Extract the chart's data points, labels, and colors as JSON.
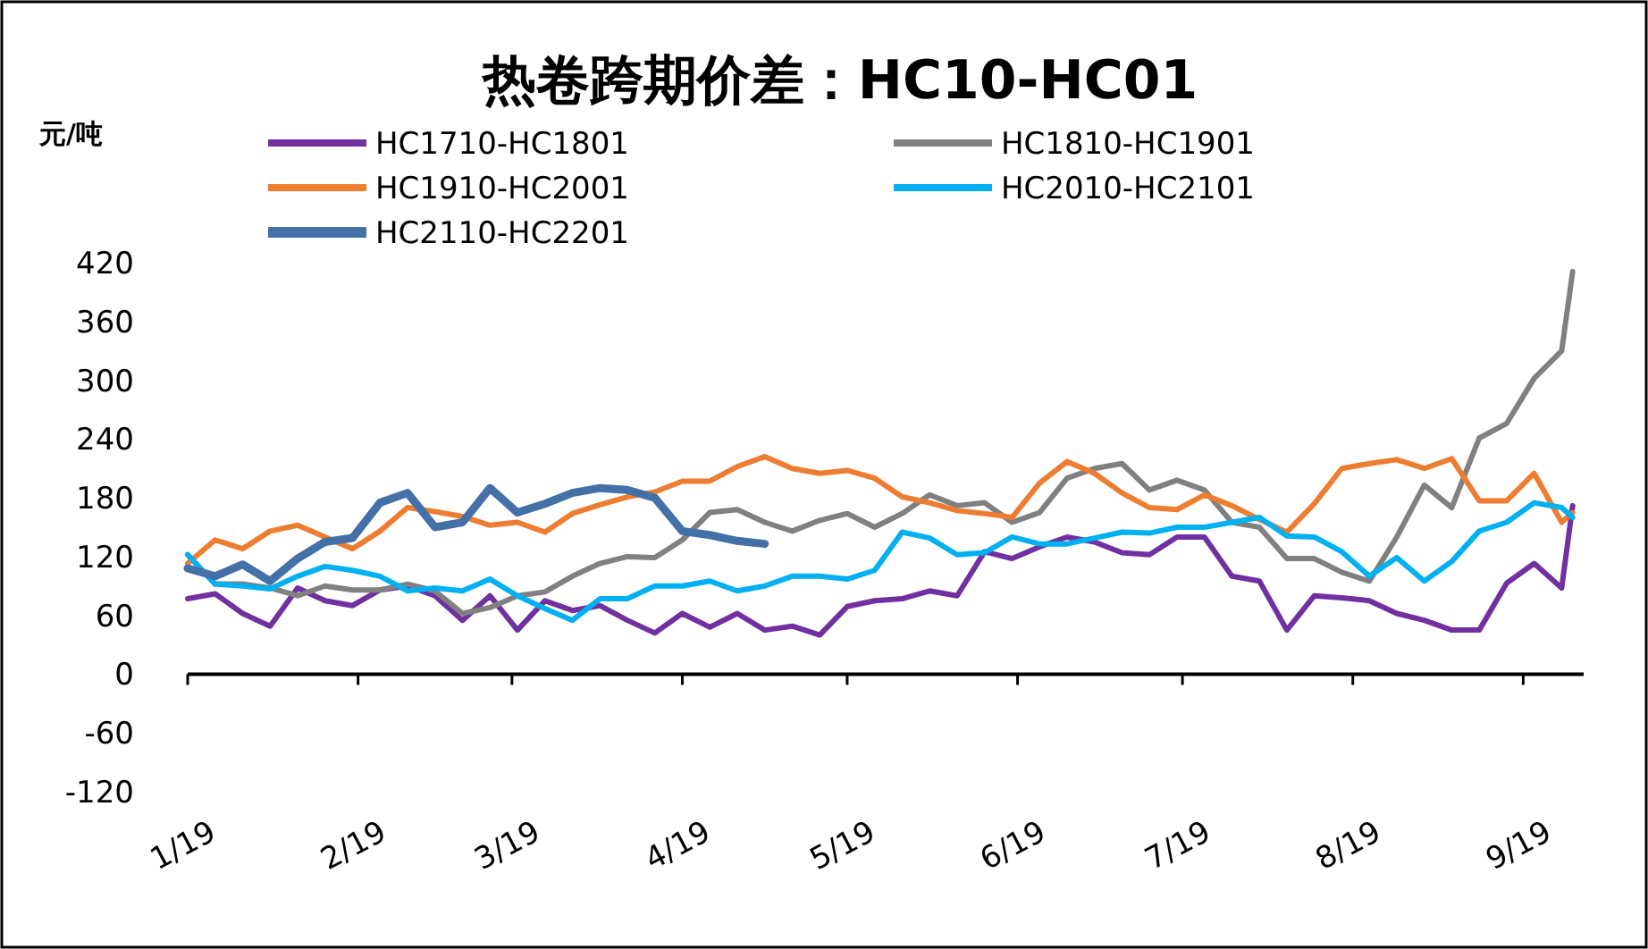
{
  "chart_data": {
    "type": "line",
    "title": "热卷跨期价差：HC10-HC01",
    "ylabel": "元/吨",
    "x": [
      "--01-19",
      "--01-24",
      "--01-29",
      "--02-03",
      "--02-08",
      "--02-13",
      "--02-18",
      "--02-23",
      "--02-28",
      "--03-05",
      "--03-10",
      "--03-15",
      "--03-20",
      "--03-25",
      "--03-30",
      "--04-04",
      "--04-09",
      "--04-14",
      "--04-19",
      "--04-24",
      "--04-29",
      "--05-04",
      "--05-09",
      "--05-14",
      "--05-19",
      "--05-24",
      "--05-29",
      "--06-03",
      "--06-08",
      "--06-13",
      "--06-18",
      "--06-23",
      "--06-28",
      "--07-03",
      "--07-08",
      "--07-13",
      "--07-18",
      "--07-23",
      "--07-28",
      "--08-02",
      "--08-07",
      "--08-12",
      "--08-17",
      "--08-22",
      "--08-27",
      "--09-01",
      "--09-06",
      "--09-11",
      "--09-16",
      "--09-21",
      "--09-26",
      "--09-28"
    ],
    "series": [
      {
        "name": "HC1710-HC1801",
        "color": "#7030a0",
        "values": [
          77,
          82,
          62,
          49,
          88,
          75,
          70,
          86,
          90,
          80,
          55,
          80,
          45,
          75,
          65,
          70,
          55,
          42,
          62,
          48,
          62,
          45,
          49,
          40,
          69,
          75,
          77,
          85,
          80,
          125,
          118,
          130,
          140,
          135,
          124,
          122,
          140,
          140,
          100,
          95,
          45,
          80,
          78,
          75,
          62,
          55,
          45,
          45,
          93,
          113,
          88,
          172
        ]
      },
      {
        "name": "HC1810-HC1901",
        "color": "#808080",
        "values": [
          122,
          92,
          92,
          88,
          80,
          90,
          86,
          86,
          92,
          85,
          62,
          68,
          80,
          84,
          100,
          113,
          120,
          119,
          137,
          165,
          168,
          155,
          146,
          157,
          164,
          150,
          164,
          183,
          172,
          175,
          155,
          165,
          200,
          210,
          215,
          188,
          198,
          188,
          155,
          150,
          118,
          118,
          104,
          95,
          140,
          193,
          170,
          241,
          256,
          302,
          330,
          411
        ]
      },
      {
        "name": "HC1910-HC2001",
        "color": "#ed7d31",
        "values": [
          113,
          137,
          128,
          146,
          152,
          140,
          128,
          146,
          170,
          166,
          161,
          152,
          155,
          145,
          164,
          173,
          181,
          186,
          197,
          197,
          212,
          222,
          210,
          205,
          208,
          200,
          181,
          175,
          167,
          164,
          160,
          195,
          217,
          205,
          185,
          170,
          168,
          183,
          172,
          158,
          145,
          174,
          210,
          215,
          219,
          210,
          220,
          177,
          177,
          205,
          155,
          165
        ]
      },
      {
        "name": "HC2010-HC2101",
        "color": "#00b0f0",
        "values": [
          122,
          92,
          90,
          87,
          100,
          110,
          106,
          100,
          85,
          88,
          85,
          97,
          80,
          67,
          55,
          77,
          77,
          90,
          90,
          95,
          85,
          90,
          100,
          100,
          97,
          106,
          145,
          139,
          122,
          124,
          140,
          133,
          133,
          139,
          145,
          144,
          150,
          150,
          155,
          160,
          141,
          140,
          125,
          100,
          119,
          95,
          115,
          146,
          155,
          175,
          170,
          160
        ]
      },
      {
        "name": "HC2110-HC2201",
        "color": "#4470a8",
        "values": [
          108,
          100,
          112,
          95,
          118,
          135,
          139,
          175,
          185,
          150,
          155,
          190,
          165,
          174,
          185,
          190,
          188,
          180,
          146,
          142,
          136,
          133,
          null,
          null,
          null,
          null,
          null,
          null,
          null,
          null,
          null,
          null,
          null,
          null,
          null,
          null,
          null,
          null,
          null,
          null,
          null,
          null,
          null,
          null,
          null,
          null,
          null,
          null,
          null,
          null,
          null,
          null
        ]
      }
    ],
    "xlim": [
      "--01-19",
      "--09-30"
    ],
    "xticks": [
      {
        "value": "--01-19",
        "label": "1/19"
      },
      {
        "value": "--02-19",
        "label": "2/19"
      },
      {
        "value": "--03-19",
        "label": "3/19"
      },
      {
        "value": "--04-19",
        "label": "4/19"
      },
      {
        "value": "--05-19",
        "label": "5/19"
      },
      {
        "value": "--06-19",
        "label": "6/19"
      },
      {
        "value": "--07-19",
        "label": "7/19"
      },
      {
        "value": "--08-19",
        "label": "8/19"
      },
      {
        "value": "--09-19",
        "label": "9/19"
      }
    ],
    "ylim": [
      -120,
      420
    ],
    "yticks": [
      -120,
      -60,
      0,
      60,
      120,
      180,
      240,
      300,
      360,
      420
    ],
    "legend": "top"
  }
}
